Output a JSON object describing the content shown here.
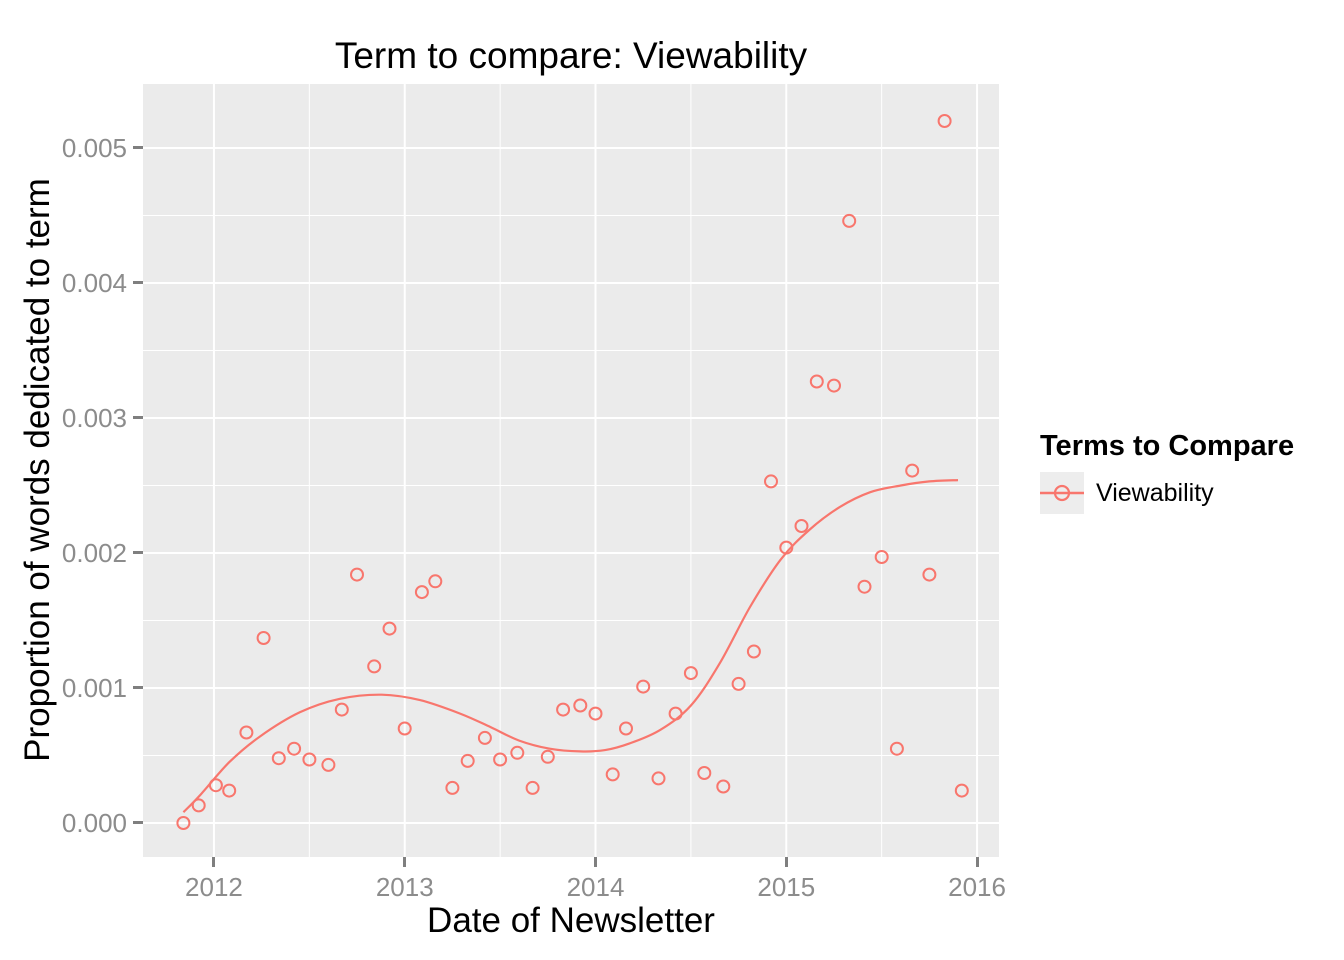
{
  "title": "Term to compare: Viewability",
  "x_axis": {
    "title": "Date of Newsletter",
    "ticks": [
      2012,
      2013,
      2014,
      2015,
      2016
    ],
    "tick_labels": [
      "2012",
      "2013",
      "2014",
      "2015",
      "2016"
    ],
    "minor_ticks": [
      2012.5,
      2013.5,
      2014.5,
      2015.5
    ],
    "domain": [
      2011.628,
      2016.115
    ]
  },
  "y_axis": {
    "title": "Proportion of words dedicated to term",
    "ticks": [
      0,
      0.001,
      0.002,
      0.003,
      0.004,
      0.005
    ],
    "tick_labels": [
      "0.000",
      "0.001",
      "0.002",
      "0.003",
      "0.004",
      "0.005"
    ],
    "minor_ticks": [
      0.0005,
      0.0015,
      0.0025,
      0.0035,
      0.0045
    ],
    "domain": [
      -0.000252,
      0.005474
    ]
  },
  "legend": {
    "title": "Terms to Compare",
    "items": [
      {
        "label": "Viewability",
        "color": "#F8766D"
      }
    ]
  },
  "colors": {
    "series": "#F8766D",
    "panel_bg": "#EBEBEB",
    "grid_major": "#FFFFFF",
    "grid_minor": "#FFFFFF",
    "tick_text": "#8C8C8C",
    "tick_mark": "#7F7F7F",
    "legend_key_bg": "#EDEDED"
  },
  "chart_data": {
    "type": "scatter",
    "title": "Term to compare: Viewability",
    "xlabel": "Date of Newsletter",
    "ylabel": "Proportion of words dedicated to term",
    "xlim": [
      2011.628,
      2016.115
    ],
    "ylim": [
      -0.000252,
      0.005474
    ],
    "grid": "major+minor",
    "legend_position": "right",
    "marker": "open-circle",
    "series": [
      {
        "name": "Viewability",
        "role": "points",
        "x": [
          2011.84,
          2011.92,
          2012.01,
          2012.08,
          2012.17,
          2012.26,
          2012.34,
          2012.42,
          2012.5,
          2012.6,
          2012.67,
          2012.75,
          2012.84,
          2012.92,
          2013.0,
          2013.09,
          2013.16,
          2013.25,
          2013.33,
          2013.42,
          2013.5,
          2013.59,
          2013.67,
          2013.75,
          2013.83,
          2013.92,
          2014.0,
          2014.09,
          2014.16,
          2014.25,
          2014.33,
          2014.42,
          2014.5,
          2014.57,
          2014.67,
          2014.75,
          2014.83,
          2014.92,
          2015.0,
          2015.08,
          2015.16,
          2015.25,
          2015.33,
          2015.41,
          2015.5,
          2015.58,
          2015.66,
          2015.75,
          2015.83,
          2015.92
        ],
        "y": [
          0.0,
          0.00013,
          0.00028,
          0.00024,
          0.00067,
          0.00137,
          0.00048,
          0.00055,
          0.00047,
          0.00043,
          0.00084,
          0.00184,
          0.00116,
          0.00144,
          0.0007,
          0.00171,
          0.00179,
          0.00026,
          0.00046,
          0.00063,
          0.00047,
          0.00052,
          0.00026,
          0.00049,
          0.00084,
          0.00087,
          0.00081,
          0.00036,
          0.0007,
          0.00101,
          0.00033,
          0.00081,
          0.00111,
          0.00037,
          0.00027,
          0.00103,
          0.00127,
          0.00253,
          0.00204,
          0.0022,
          0.00327,
          0.00324,
          0.00446,
          0.00175,
          0.00197,
          0.00055,
          0.00261,
          0.00184,
          0.0052,
          0.00024
        ]
      },
      {
        "name": "Viewability smooth (loess)",
        "role": "line",
        "x": [
          2011.84,
          2011.93,
          2012.08,
          2012.24,
          2012.45,
          2012.66,
          2012.88,
          2013.08,
          2013.29,
          2013.45,
          2013.6,
          2013.76,
          2013.92,
          2014.05,
          2014.18,
          2014.34,
          2014.5,
          2014.65,
          2014.81,
          2014.97,
          2015.12,
          2015.28,
          2015.44,
          2015.6,
          2015.75,
          2015.9
        ],
        "y": [
          8e-05,
          0.00021,
          0.00045,
          0.00064,
          0.00082,
          0.00092,
          0.00095,
          0.00091,
          0.00081,
          0.00071,
          0.00061,
          0.00055,
          0.00053,
          0.00054,
          0.00059,
          0.00069,
          0.00087,
          0.00118,
          0.0016,
          0.00195,
          0.00217,
          0.00234,
          0.00245,
          0.0025,
          0.00253,
          0.00254
        ]
      }
    ]
  }
}
